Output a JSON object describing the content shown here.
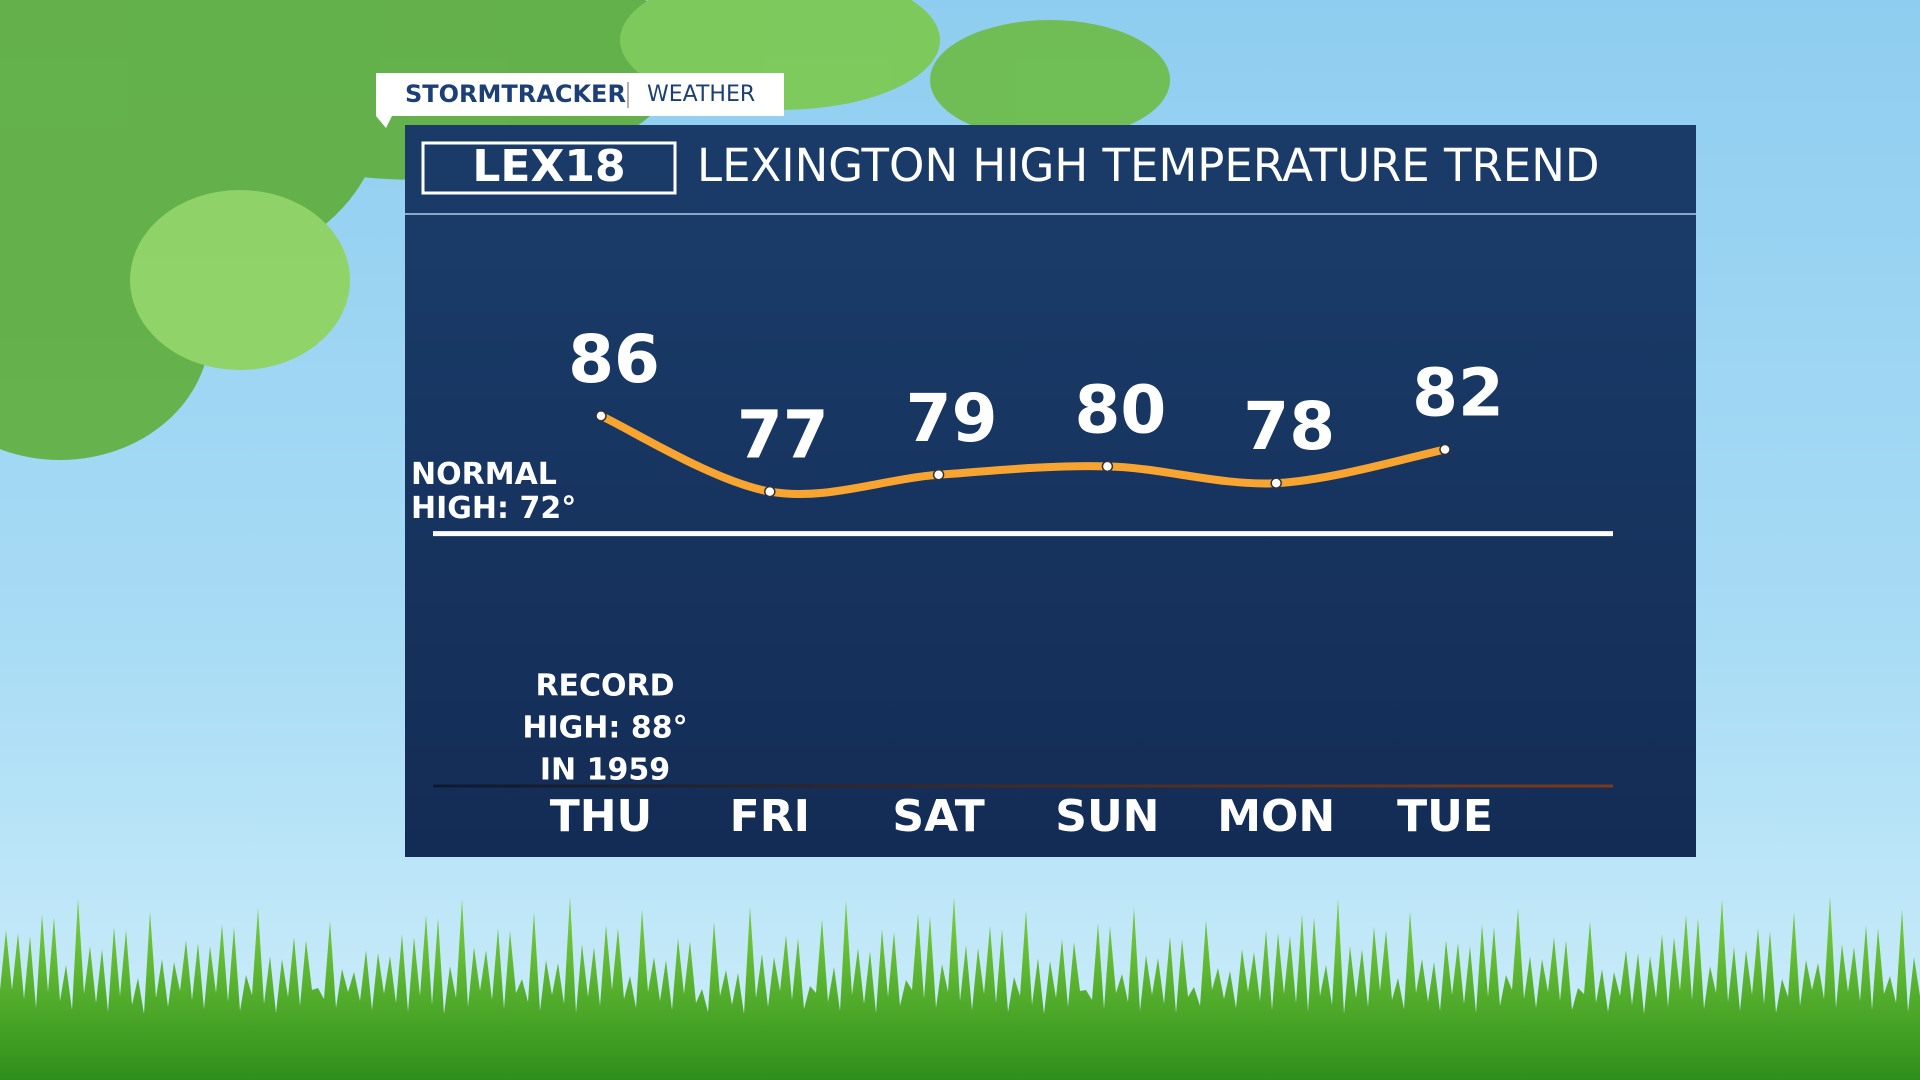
{
  "branding": {
    "show": "STORMTRACKER",
    "section": "WEATHER",
    "station": "LEX18"
  },
  "chart_data": {
    "type": "line",
    "title": "LEXINGTON HIGH TEMPERATURE TREND",
    "categories": [
      "THU",
      "FRI",
      "SAT",
      "SUN",
      "MON",
      "TUE"
    ],
    "values": [
      86,
      77,
      79,
      80,
      78,
      82
    ],
    "color": "#f7a530",
    "ylim": [
      42,
      110
    ],
    "reference_line": {
      "value": 72,
      "label_lines": [
        "NORMAL",
        "HIGH: 72°"
      ]
    },
    "annotation_lines": [
      "RECORD",
      "HIGH: 88°",
      "IN 1959"
    ]
  }
}
